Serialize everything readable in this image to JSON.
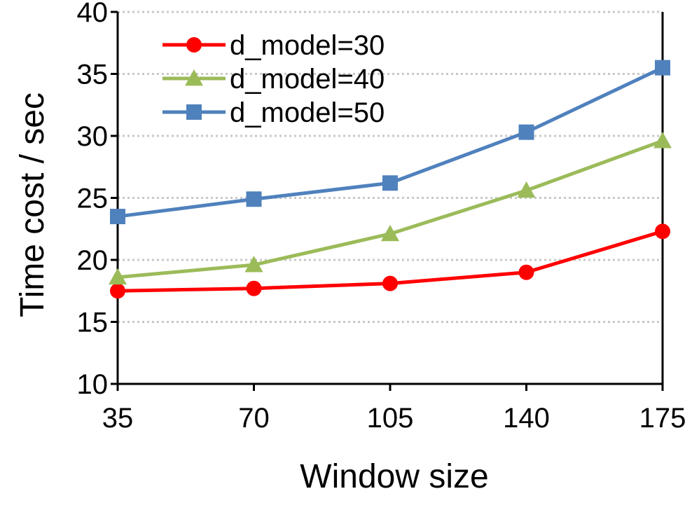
{
  "chart_data": {
    "type": "line",
    "title": "",
    "xlabel": "Window size",
    "ylabel": "Time cost / sec",
    "x": [
      35,
      70,
      105,
      140,
      175
    ],
    "x_tick_labels": [
      "35",
      "70",
      "105",
      "140",
      "175"
    ],
    "ylim": [
      10,
      40
    ],
    "y_ticks": [
      10,
      15,
      20,
      25,
      30,
      35,
      40
    ],
    "y_tick_labels": [
      "10",
      "15",
      "20",
      "25",
      "30",
      "35",
      "40"
    ],
    "grid": "horizontal dotted",
    "legend_position": "top-left",
    "series": [
      {
        "name": "d_model=30",
        "color": "#ff0000",
        "marker": "circle",
        "values": [
          17.5,
          17.7,
          18.1,
          19.0,
          22.3
        ]
      },
      {
        "name": "d_model=40",
        "color": "#9bbb59",
        "marker": "triangle",
        "values": [
          18.6,
          19.6,
          22.1,
          25.6,
          29.6
        ]
      },
      {
        "name": "d_model=50",
        "color": "#4f81bd",
        "marker": "square",
        "values": [
          23.5,
          24.9,
          26.2,
          30.3,
          35.5
        ]
      }
    ]
  }
}
